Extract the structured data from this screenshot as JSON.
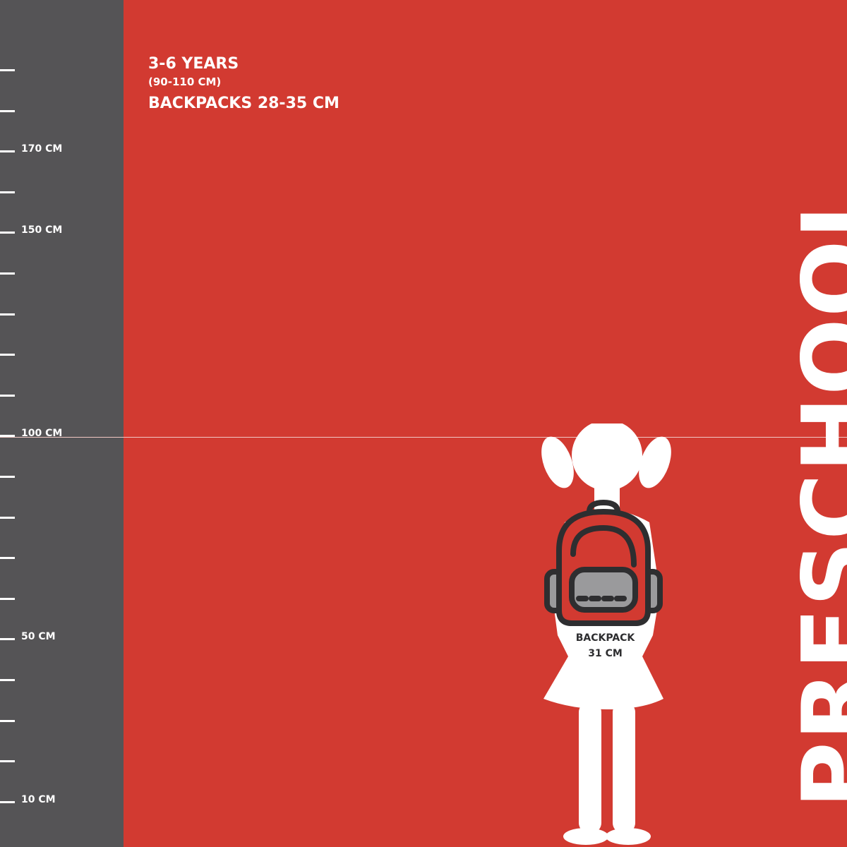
{
  "ruler": {
    "ticks": [
      {
        "label": ""
      },
      {
        "label": ""
      },
      {
        "label": "170 CM"
      },
      {
        "label": ""
      },
      {
        "label": "150 CM"
      },
      {
        "label": ""
      },
      {
        "label": ""
      },
      {
        "label": ""
      },
      {
        "label": ""
      },
      {
        "label": "100 CM"
      },
      {
        "label": ""
      },
      {
        "label": ""
      },
      {
        "label": ""
      },
      {
        "label": ""
      },
      {
        "label": "50 CM"
      },
      {
        "label": ""
      },
      {
        "label": ""
      },
      {
        "label": ""
      },
      {
        "label": "10 CM"
      }
    ]
  },
  "header": {
    "age": "3-6 YEARS",
    "height_range": "(90-110 CM)",
    "backpack_range": "BACKPACKS 28-35 CM"
  },
  "title": "PRESCHOOL",
  "backpack": {
    "line1": "BACKPACK",
    "line2": "31 CM"
  },
  "colors": {
    "background": "#d23a31",
    "ruler": "#555456",
    "text": "#ffffff",
    "backpack_outline": "#2e2e30",
    "backpack_pocket": "#9a9a9c"
  }
}
